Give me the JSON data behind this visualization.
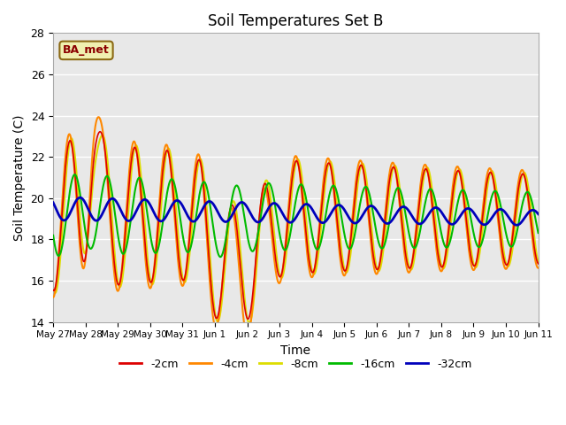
{
  "title": "Soil Temperatures Set B",
  "xlabel": "Time",
  "ylabel": "Soil Temperature (C)",
  "ylim": [
    14,
    28
  ],
  "yticks": [
    14,
    16,
    18,
    20,
    22,
    24,
    26,
    28
  ],
  "label_text": "BA_met",
  "plot_bg": "#e8e8e8",
  "fig_bg": "#ffffff",
  "series": [
    {
      "label": "-2cm",
      "color": "#dd0000",
      "lw": 1.2
    },
    {
      "label": "-4cm",
      "color": "#ff8800",
      "lw": 1.5
    },
    {
      "label": "-8cm",
      "color": "#dddd00",
      "lw": 1.5
    },
    {
      "label": "-16cm",
      "color": "#00bb00",
      "lw": 1.5
    },
    {
      "label": "-32cm",
      "color": "#0000bb",
      "lw": 2.0
    }
  ],
  "x_tick_labels": [
    "May 27",
    "May 28",
    "May 29",
    "May 30",
    "May 31",
    "Jun 1",
    "Jun 2",
    "Jun 3",
    "Jun 4",
    "Jun 5",
    "Jun 6",
    "Jun 7",
    "Jun 8",
    "Jun 9",
    "Jun 10",
    "Jun 11"
  ],
  "figsize": [
    6.4,
    4.8
  ],
  "dpi": 100
}
